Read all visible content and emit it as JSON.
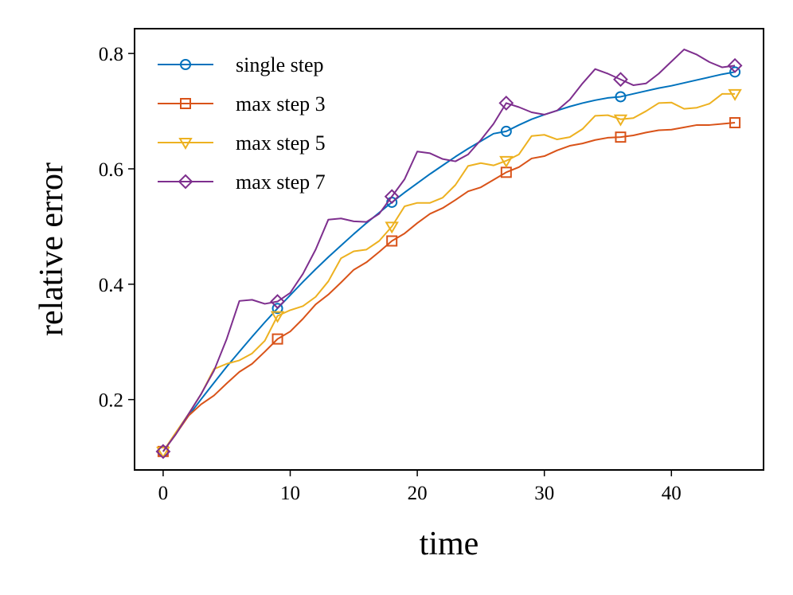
{
  "chart_data": {
    "type": "line",
    "title": "",
    "xlabel": "time",
    "ylabel": "relative error",
    "xlim": [
      -2.25,
      47.25
    ],
    "ylim": [
      0.078,
      0.843
    ],
    "xticks": [
      0,
      10,
      20,
      30,
      40
    ],
    "yticks": [
      0.2,
      0.4,
      0.6,
      0.8
    ],
    "xtick_labels": [
      "0",
      "10",
      "20",
      "30",
      "40"
    ],
    "ytick_labels": [
      "0.2",
      "0.4",
      "0.6",
      "0.8"
    ],
    "grid": false,
    "legend_position": "top-left",
    "x": [
      0,
      1,
      2,
      3,
      4,
      5,
      6,
      7,
      8,
      9,
      10,
      11,
      12,
      13,
      14,
      15,
      16,
      17,
      18,
      19,
      20,
      21,
      22,
      23,
      24,
      25,
      26,
      27,
      28,
      29,
      30,
      31,
      32,
      33,
      34,
      35,
      36,
      37,
      38,
      39,
      40,
      41,
      42,
      43,
      44,
      45
    ],
    "series": [
      {
        "name": "single step",
        "color": "#0072BD",
        "marker": "circle",
        "markers_at": [
          0,
          9,
          18,
          27,
          36,
          45
        ],
        "values": [
          0.11,
          0.141,
          0.172,
          0.201,
          0.229,
          0.257,
          0.283,
          0.309,
          0.334,
          0.358,
          0.381,
          0.404,
          0.426,
          0.447,
          0.467,
          0.487,
          0.506,
          0.524,
          0.542,
          0.559,
          0.575,
          0.591,
          0.606,
          0.621,
          0.635,
          0.648,
          0.661,
          0.665,
          0.676,
          0.686,
          0.694,
          0.701,
          0.708,
          0.714,
          0.719,
          0.723,
          0.725,
          0.73,
          0.735,
          0.74,
          0.744,
          0.749,
          0.754,
          0.759,
          0.764,
          0.768
        ]
      },
      {
        "name": "max step 3",
        "color": "#D95319",
        "marker": "square",
        "markers_at": [
          0,
          9,
          18,
          27,
          36,
          45
        ],
        "values": [
          0.11,
          0.14,
          0.172,
          0.192,
          0.207,
          0.228,
          0.248,
          0.262,
          0.283,
          0.305,
          0.318,
          0.34,
          0.365,
          0.382,
          0.403,
          0.425,
          0.438,
          0.456,
          0.475,
          0.488,
          0.506,
          0.522,
          0.532,
          0.546,
          0.561,
          0.568,
          0.581,
          0.594,
          0.603,
          0.618,
          0.622,
          0.632,
          0.64,
          0.644,
          0.65,
          0.654,
          0.655,
          0.658,
          0.663,
          0.667,
          0.668,
          0.672,
          0.676,
          0.676,
          0.678,
          0.68
        ]
      },
      {
        "name": "max step 5",
        "color": "#EDB120",
        "marker": "triangle-down",
        "markers_at": [
          0,
          9,
          18,
          27,
          36,
          45
        ],
        "values": [
          0.11,
          0.143,
          0.175,
          0.21,
          0.253,
          0.262,
          0.268,
          0.28,
          0.302,
          0.345,
          0.355,
          0.362,
          0.378,
          0.405,
          0.445,
          0.457,
          0.46,
          0.475,
          0.5,
          0.535,
          0.541,
          0.541,
          0.55,
          0.572,
          0.605,
          0.61,
          0.606,
          0.614,
          0.625,
          0.657,
          0.659,
          0.651,
          0.655,
          0.669,
          0.692,
          0.693,
          0.686,
          0.688,
          0.7,
          0.714,
          0.715,
          0.704,
          0.706,
          0.713,
          0.73,
          0.73
        ]
      },
      {
        "name": "max step 7",
        "color": "#7E2F8E",
        "marker": "diamond",
        "markers_at": [
          0,
          9,
          18,
          27,
          36,
          45
        ],
        "values": [
          0.11,
          0.14,
          0.175,
          0.21,
          0.25,
          0.305,
          0.371,
          0.373,
          0.366,
          0.37,
          0.385,
          0.418,
          0.46,
          0.512,
          0.514,
          0.509,
          0.508,
          0.522,
          0.552,
          0.582,
          0.63,
          0.627,
          0.617,
          0.613,
          0.625,
          0.65,
          0.678,
          0.714,
          0.707,
          0.698,
          0.694,
          0.701,
          0.72,
          0.748,
          0.773,
          0.765,
          0.755,
          0.745,
          0.748,
          0.765,
          0.786,
          0.807,
          0.798,
          0.785,
          0.776,
          0.779
        ]
      }
    ]
  }
}
